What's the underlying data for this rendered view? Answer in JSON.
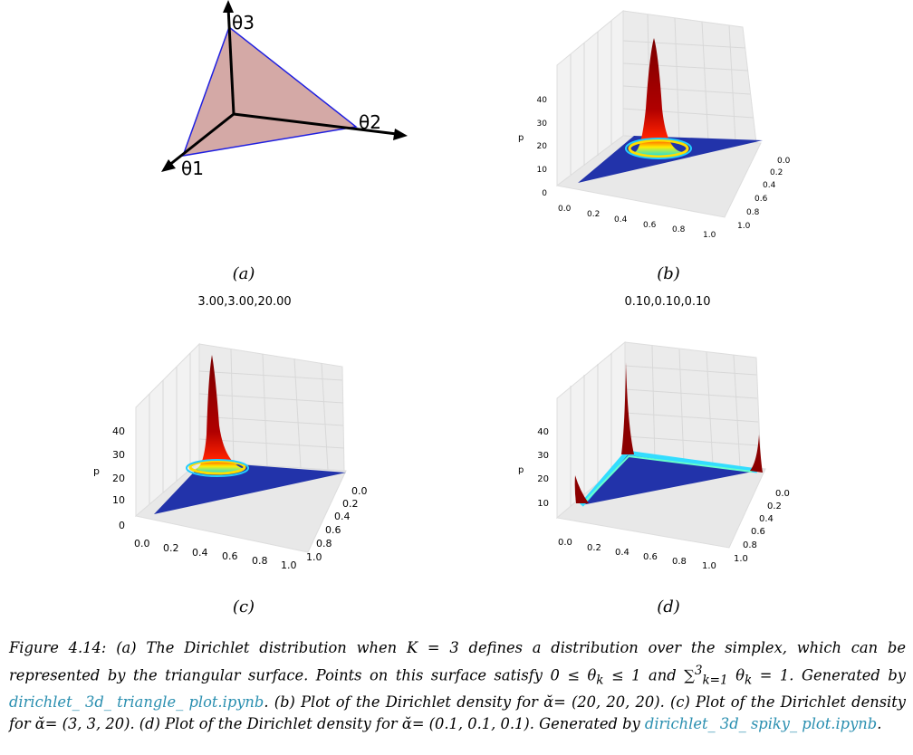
{
  "panels": {
    "a": {
      "sublabel": "(a)",
      "axis_labels": [
        "θ3",
        "θ2",
        "θ1"
      ]
    },
    "b": {
      "sublabel": "(b)",
      "title": "",
      "z_label": "p",
      "z_ticks": [
        "0",
        "10",
        "20",
        "30",
        "40"
      ],
      "x_ticks": [
        "0.0",
        "0.2",
        "0.4",
        "0.6",
        "0.8",
        "1.0"
      ],
      "y_ticks": [
        "0.0",
        "0.2",
        "0.4",
        "0.6",
        "0.8",
        "1.0"
      ]
    },
    "c": {
      "sublabel": "(c)",
      "title": "3.00,3.00,20.00",
      "z_label": "p",
      "z_ticks": [
        "0",
        "10",
        "20",
        "30",
        "40"
      ],
      "x_ticks": [
        "0.0",
        "0.2",
        "0.4",
        "0.6",
        "0.8",
        "1.0"
      ],
      "y_ticks": [
        "0.0",
        "0.2",
        "0.4",
        "0.6",
        "0.8",
        "1.0"
      ]
    },
    "d": {
      "sublabel": "(d)",
      "title": "0.10,0.10,0.10",
      "z_label": "p",
      "z_ticks": [
        "10",
        "20",
        "30",
        "40"
      ],
      "x_ticks": [
        "0.0",
        "0.2",
        "0.4",
        "0.6",
        "0.8",
        "1.0"
      ],
      "y_ticks": [
        "0.0",
        "0.2",
        "0.4",
        "0.6",
        "0.8",
        "1.0"
      ]
    }
  },
  "caption": {
    "part1": "Figure 4.14: (a) The Dirichlet distribution when K = 3 defines a distribution over the simplex, which can be represented by the triangular surface. Points on this surface satisfy 0 ≤ θ",
    "sub_k1": "k",
    "part2": " ≤ 1 and ∑",
    "sum_sup": "3",
    "sum_sub": "k=1",
    "part3": " θ",
    "sub_k2": "k",
    "part4": " = 1. Generated by ",
    "link1": "dirichlet_ 3d_ triangle_ plot.ipynb",
    "part5": ". (b) Plot of the Dirichlet density for ᾰ= (20, 20, 20). (c) Plot of the Dirichlet density for ᾰ= (3, 3, 20). (d) Plot of the Dirichlet density for ᾰ= (0.1, 0.1, 0.1). Generated by ",
    "link2": "dirichlet_ 3d_ spiky_ plot.ipynb",
    "part6": "."
  },
  "colors": {
    "simplex_fill": "#d4a9a6",
    "simplex_edge": "#1f1fe0",
    "surface_low": "#2233aa",
    "surface_high": "#8b0000",
    "link": "#2a8fb0"
  }
}
